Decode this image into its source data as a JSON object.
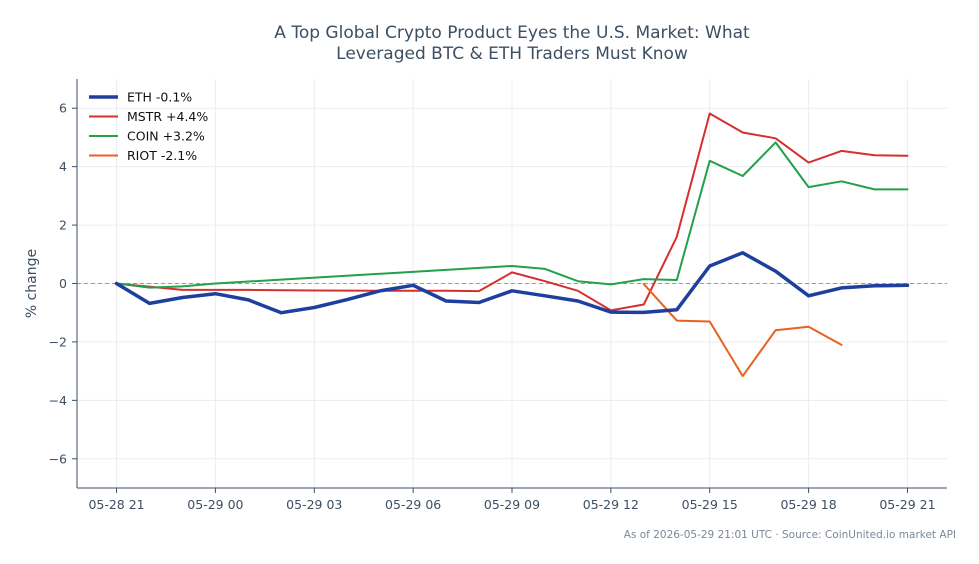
{
  "chart_data": {
    "type": "line",
    "title": "A Top Global Crypto Product Eyes the U.S. Market: What Leveraged BTC & ETH Traders Must Know",
    "title_lines": [
      "A Top Global Crypto Product Eyes the U.S. Market: What",
      "Leveraged BTC & ETH Traders Must Know"
    ],
    "xlabel": "",
    "ylabel": "% change",
    "xlim_hours": [
      -1.2,
      25.2
    ],
    "ylim": [
      -7,
      7
    ],
    "x_ticks": [
      {
        "hour": 0,
        "label": "05-28 21"
      },
      {
        "hour": 3,
        "label": "05-29 00"
      },
      {
        "hour": 6,
        "label": "05-29 03"
      },
      {
        "hour": 9,
        "label": "05-29 06"
      },
      {
        "hour": 12,
        "label": "05-29 09"
      },
      {
        "hour": 15,
        "label": "05-29 12"
      },
      {
        "hour": 18,
        "label": "05-29 15"
      },
      {
        "hour": 21,
        "label": "05-29 18"
      },
      {
        "hour": 24,
        "label": "05-29 21"
      }
    ],
    "y_ticks": [
      {
        "value": 6,
        "label": "6"
      },
      {
        "value": 4,
        "label": "4"
      },
      {
        "value": 2,
        "label": "2"
      },
      {
        "value": 0,
        "label": "0"
      },
      {
        "value": -2,
        "label": "−2"
      },
      {
        "value": -4,
        "label": "−4"
      },
      {
        "value": -6,
        "label": "−6"
      }
    ],
    "grid": true,
    "zero_line": true,
    "legend_position": "top-left",
    "series": [
      {
        "name": "ETH -0.1%",
        "color": "#1f3f9e",
        "emphasis": true,
        "points": [
          [
            0,
            0.0
          ],
          [
            1,
            -0.68
          ],
          [
            2,
            -0.48
          ],
          [
            3,
            -0.35
          ],
          [
            4,
            -0.56
          ],
          [
            5,
            -1.0
          ],
          [
            6,
            -0.82
          ],
          [
            7,
            -0.55
          ],
          [
            8,
            -0.25
          ],
          [
            9,
            -0.06
          ],
          [
            10,
            -0.6
          ],
          [
            11,
            -0.65
          ],
          [
            12,
            -0.25
          ],
          [
            13,
            -0.42
          ],
          [
            14,
            -0.6
          ],
          [
            15,
            -0.98
          ],
          [
            16,
            -0.99
          ],
          [
            17,
            -0.9
          ],
          [
            18,
            0.6
          ],
          [
            19,
            1.05
          ],
          [
            20,
            0.42
          ],
          [
            21,
            -0.42
          ],
          [
            22,
            -0.15
          ],
          [
            23,
            -0.08
          ],
          [
            24,
            -0.06
          ]
        ]
      },
      {
        "name": "MSTR +4.4%",
        "color": "#d62f2f",
        "emphasis": false,
        "points": [
          [
            0,
            0.0
          ],
          [
            2,
            -0.22
          ],
          [
            4,
            -0.22
          ],
          [
            6,
            -0.24
          ],
          [
            8,
            -0.25
          ],
          [
            10,
            -0.25
          ],
          [
            11,
            -0.26
          ],
          [
            12,
            0.38
          ],
          [
            13,
            0.08
          ],
          [
            14,
            -0.25
          ],
          [
            15,
            -0.92
          ],
          [
            16,
            -0.72
          ],
          [
            17,
            1.6
          ],
          [
            18,
            5.82
          ],
          [
            19,
            5.17
          ],
          [
            20,
            4.97
          ],
          [
            21,
            4.14
          ],
          [
            22,
            4.54
          ],
          [
            23,
            4.39
          ],
          [
            24,
            4.37
          ]
        ]
      },
      {
        "name": "COIN +3.2%",
        "color": "#22a04a",
        "emphasis": false,
        "points": [
          [
            0,
            0.0
          ],
          [
            1,
            -0.14
          ],
          [
            2,
            -0.1
          ],
          [
            3,
            0.0
          ],
          [
            12,
            0.6
          ],
          [
            13,
            0.5
          ],
          [
            14,
            0.08
          ],
          [
            15,
            -0.03
          ],
          [
            16,
            0.15
          ],
          [
            17,
            0.12
          ],
          [
            18,
            4.2
          ],
          [
            19,
            3.68
          ],
          [
            20,
            4.83
          ],
          [
            21,
            3.3
          ],
          [
            22,
            3.5
          ],
          [
            23,
            3.22
          ],
          [
            24,
            3.22
          ]
        ]
      },
      {
        "name": "RIOT -2.1%",
        "color": "#e8611e",
        "emphasis": false,
        "points": [
          [
            16,
            -0.02
          ],
          [
            17,
            -1.27
          ],
          [
            18,
            -1.3
          ],
          [
            19,
            -3.17
          ],
          [
            20,
            -1.6
          ],
          [
            21,
            -1.48
          ],
          [
            22,
            -2.1
          ]
        ]
      }
    ]
  },
  "footer": "As of 2026-05-29 21:01 UTC · Source: CoinUnited.io market API"
}
